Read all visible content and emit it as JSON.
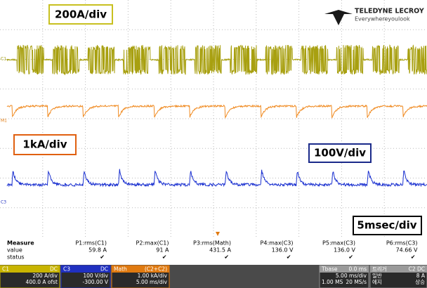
{
  "logo": {
    "brand": "TELEDYNE LECROY",
    "tagline": "Everywhereyoulook"
  },
  "annotations": {
    "ch1_scale": "200A/div",
    "math_scale": "1kA/div",
    "ch3_scale": "100V/div",
    "time_scale": "5msec/div"
  },
  "trace_markers": [
    "C1",
    "M1",
    "C3"
  ],
  "measure": {
    "title": "Measure",
    "row_labels": [
      "value",
      "status"
    ],
    "columns": [
      {
        "param": "P1:rms(C1)",
        "value": "59.8 A",
        "status": "✔"
      },
      {
        "param": "P2:max(C1)",
        "value": "91 A",
        "status": "✔"
      },
      {
        "param": "P3:rms(Math)",
        "value": "431.5 A",
        "status": "✔"
      },
      {
        "param": "P4:max(C3)",
        "value": "136.0 V",
        "status": "✔"
      },
      {
        "param": "P5:max(C3)",
        "value": "136.0 V",
        "status": "✔"
      },
      {
        "param": "P6:rms(C3)",
        "value": "74.66 V",
        "status": "✔"
      }
    ]
  },
  "descriptors": {
    "c1": {
      "name": "C1",
      "coupling": "DC",
      "lines": [
        "200 A/div",
        "400.0 A ofst"
      ]
    },
    "c3": {
      "name": "C3",
      "coupling": "DC",
      "lines": [
        "100 V/div",
        "-300.00 V"
      ]
    },
    "math": {
      "name": "Math",
      "source": "(C2+C2)",
      "lines": [
        "1.00 kA/div",
        "5.00 ms/div"
      ]
    },
    "timebase": {
      "name": "Tbase",
      "delay": "0.0 ms",
      "lines": [
        "5.00 ms/div",
        "1.00 MS",
        "20 MS/s"
      ]
    },
    "trigger": {
      "name": "트리거",
      "source": "C2 DC",
      "lines": [
        "일반",
        "8 A",
        "에지",
        "상승"
      ]
    }
  }
}
